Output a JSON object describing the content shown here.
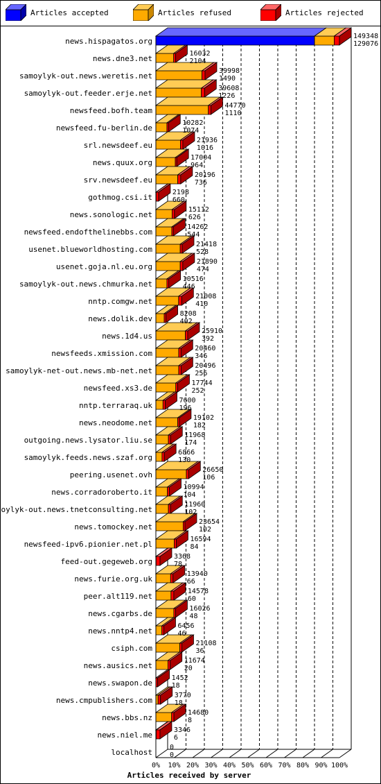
{
  "legend": [
    {
      "label": "Articles accepted",
      "color": "#0000ff"
    },
    {
      "label": "Articles refused",
      "color": "#ffaa00"
    },
    {
      "label": "Articles rejected",
      "color": "#ff0000"
    }
  ],
  "chart_data": {
    "type": "bar",
    "orientation": "horizontal",
    "stacked": true,
    "xlabel": "Articles received by server",
    "ticks": [
      "0%",
      "10%",
      "20%",
      "30%",
      "40%",
      "50%",
      "60%",
      "70%",
      "80%",
      "90%",
      "100%"
    ],
    "xlim": [
      0,
      149348
    ],
    "categories": [
      "news.hispagatos.org",
      "news.dne3.net",
      "samoylyk-out.news.weretis.net",
      "samoylyk-out.feeder.erje.net",
      "newsfeed.bofh.team",
      "newsfeed.fu-berlin.de",
      "srl.newsdeef.eu",
      "news.quux.org",
      "srv.newsdeef.eu",
      "gothmog.csi.it",
      "news.sonologic.net",
      "newsfeed.endofthelinebbs.com",
      "usenet.blueworldhosting.com",
      "usenet.goja.nl.eu.org",
      "samoylyk-out.news.chmurka.net",
      "nntp.comgw.net",
      "news.dolik.dev",
      "news.1d4.us",
      "newsfeeds.xmission.com",
      "samoylyk-net-out.news.mb-net.net",
      "newsfeed.xs3.de",
      "nntp.terraraq.uk",
      "news.neodome.net",
      "outgoing.news.lysator.liu.se",
      "samoylyk.feeds.news.szaf.org",
      "peering.usenet.ovh",
      "news.corradoroberto.it",
      "samoylyk-out.news.tnetconsulting.net",
      "news.tomockey.net",
      "newsfeed-ipv6.pionier.net.pl",
      "feed-out.gegeweb.org",
      "news.furie.org.uk",
      "peer.alt119.net",
      "news.cgarbs.de",
      "news.nntp4.net",
      "csiph.com",
      "news.ausics.net",
      "news.swapon.de",
      "news.cmpublishers.com",
      "news.bbs.nz",
      "news.niel.me",
      "localhost"
    ],
    "totals": [
      149348,
      16032,
      39998,
      39608,
      44770,
      10282,
      21936,
      17004,
      20196,
      2198,
      15112,
      14262,
      21418,
      21890,
      10516,
      21008,
      8208,
      25910,
      20460,
      20496,
      17744,
      7600,
      19102,
      11968,
      6866,
      26650,
      10994,
      11960,
      23654,
      16594,
      3368,
      13940,
      14578,
      16026,
      6456,
      21108,
      11674,
      1452,
      3770,
      14680,
      3346,
      0
    ],
    "second_values": [
      129076,
      2104,
      1490,
      1226,
      1110,
      1074,
      1016,
      964,
      736,
      660,
      626,
      544,
      528,
      474,
      446,
      410,
      402,
      392,
      346,
      256,
      252,
      196,
      182,
      174,
      130,
      106,
      104,
      102,
      102,
      84,
      78,
      66,
      60,
      48,
      46,
      36,
      20,
      18,
      18,
      8,
      6,
      0
    ],
    "series": [
      {
        "name": "Articles accepted",
        "values": [
          129076,
          0,
          0,
          0,
          0,
          0,
          0,
          0,
          0,
          0,
          0,
          0,
          0,
          0,
          0,
          0,
          0,
          0,
          0,
          0,
          0,
          0,
          0,
          0,
          0,
          0,
          0,
          0,
          0,
          0,
          0,
          0,
          0,
          0,
          0,
          0,
          0,
          0,
          0,
          0,
          0,
          0
        ]
      },
      {
        "name": "Articles refused",
        "values": [
          16000,
          14500,
          37500,
          37000,
          42700,
          9000,
          20000,
          15800,
          17800,
          200,
          13200,
          13000,
          19800,
          19800,
          9000,
          18500,
          6800,
          24000,
          18600,
          18600,
          16200,
          5800,
          17800,
          10200,
          5000,
          24800,
          9400,
          10200,
          22200,
          14900,
          200,
          12000,
          12300,
          14600,
          4900,
          19500,
          9800,
          0,
          1800,
          12800,
          300,
          0
        ]
      },
      {
        "name": "Articles rejected",
        "values": [
          4272,
          1532,
          2498,
          2608,
          2070,
          1282,
          1936,
          1204,
          2396,
          1998,
          1912,
          1262,
          1618,
          2090,
          1516,
          2508,
          1408,
          1910,
          1860,
          1896,
          1544,
          1800,
          1302,
          1768,
          1866,
          1850,
          1594,
          1760,
          1454,
          1694,
          3168,
          1940,
          2278,
          1426,
          1556,
          1608,
          1874,
          1452,
          1970,
          1880,
          3046,
          0
        ]
      }
    ]
  }
}
